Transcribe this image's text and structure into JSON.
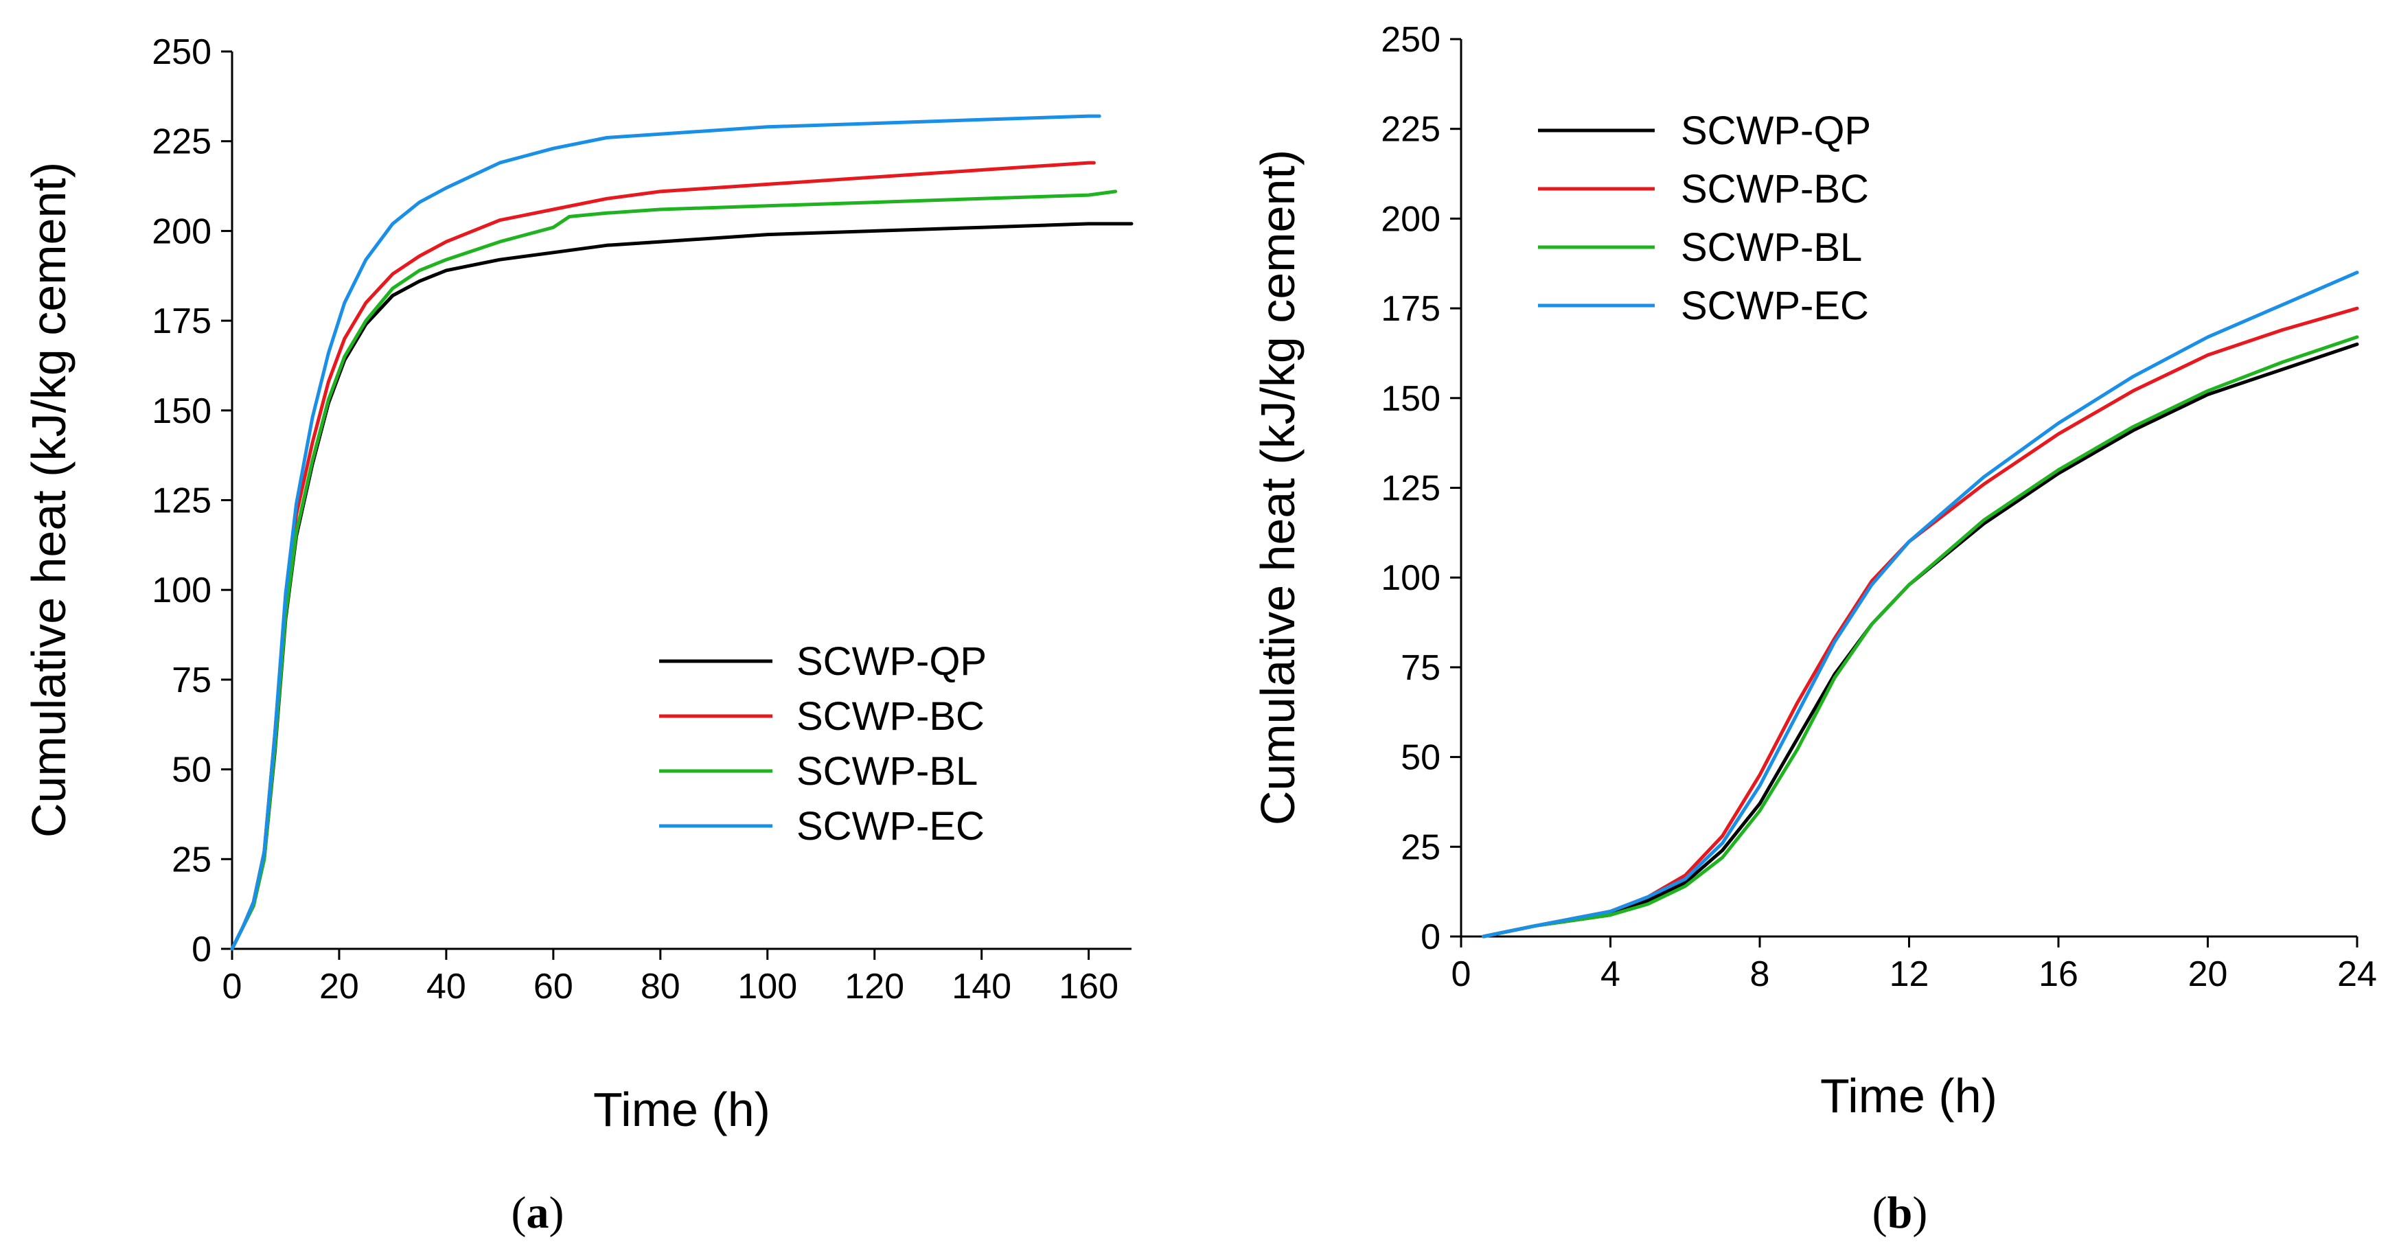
{
  "chart_data": [
    {
      "id": "a",
      "type": "line",
      "caption_letter": "a",
      "title": "",
      "xlabel": "Time (h)",
      "ylabel": "Cumulative heat (kJ/kg cement)",
      "xlim": [
        0,
        168
      ],
      "ylim": [
        0,
        250
      ],
      "xticks": [
        "0",
        "20",
        "40",
        "60",
        "80",
        "100",
        "120",
        "140",
        "160"
      ],
      "yticks": [
        "0",
        "25",
        "50",
        "75",
        "100",
        "125",
        "150",
        "175",
        "200",
        "225",
        "250"
      ],
      "grid": false,
      "legend_position": "bottom-right",
      "series": [
        {
          "name": "SCWP-QP",
          "color": "#000000",
          "x": [
            0,
            2,
            4,
            6,
            8,
            10,
            12,
            15,
            18,
            21,
            25,
            30,
            35,
            40,
            50,
            60,
            70,
            80,
            100,
            120,
            140,
            160,
            168
          ],
          "y": [
            0,
            6,
            12,
            25,
            55,
            92,
            115,
            135,
            152,
            164,
            174,
            182,
            186,
            189,
            192,
            194,
            196,
            197,
            199,
            200,
            201,
            202,
            202
          ]
        },
        {
          "name": "SCWP-BC",
          "color": "#e8191e",
          "x": [
            0,
            2,
            4,
            6,
            8,
            10,
            12,
            15,
            18,
            21,
            25,
            30,
            35,
            40,
            50,
            60,
            70,
            80,
            100,
            120,
            140,
            160,
            161
          ],
          "y": [
            0,
            6,
            13,
            27,
            60,
            97,
            121,
            141,
            158,
            170,
            180,
            188,
            193,
            197,
            203,
            206,
            209,
            211,
            213,
            215,
            217,
            219,
            219
          ]
        },
        {
          "name": "SCWP-BL",
          "color": "#1fb31f",
          "x": [
            0,
            2,
            4,
            6,
            8,
            10,
            12,
            15,
            18,
            21,
            25,
            30,
            35,
            40,
            50,
            60,
            63,
            70,
            80,
            100,
            120,
            140,
            160,
            165
          ],
          "y": [
            0,
            6,
            12,
            25,
            56,
            93,
            116,
            136,
            153,
            165,
            175,
            184,
            189,
            192,
            197,
            201,
            204,
            205,
            206,
            207,
            208,
            209,
            210,
            211
          ]
        },
        {
          "name": "SCWP-EC",
          "color": "#1a8fe8",
          "x": [
            0,
            2,
            4,
            6,
            8,
            10,
            12,
            15,
            18,
            21,
            25,
            30,
            35,
            40,
            50,
            60,
            70,
            80,
            100,
            120,
            140,
            160,
            162
          ],
          "y": [
            0,
            6,
            13,
            27,
            60,
            99,
            124,
            148,
            166,
            180,
            192,
            202,
            208,
            212,
            219,
            223,
            226,
            227,
            229,
            230,
            231,
            232,
            232
          ]
        }
      ]
    },
    {
      "id": "b",
      "type": "line",
      "caption_letter": "b",
      "title": "",
      "xlabel": "Time (h)",
      "ylabel": "Cumulative heat (kJ/kg cement)",
      "xlim": [
        0,
        24
      ],
      "ylim": [
        0,
        250
      ],
      "xticks": [
        "0",
        "4",
        "8",
        "12",
        "16",
        "20",
        "24"
      ],
      "yticks": [
        "0",
        "25",
        "50",
        "75",
        "100",
        "125",
        "150",
        "175",
        "200",
        "225",
        "250"
      ],
      "grid": false,
      "legend_position": "top-left",
      "series": [
        {
          "name": "SCWP-QP",
          "color": "#000000",
          "x": [
            0.6,
            2,
            4,
            5,
            6,
            7,
            8,
            9,
            10,
            11,
            12,
            14,
            16,
            18,
            20,
            22,
            24
          ],
          "y": [
            0,
            3,
            6,
            10,
            15,
            24,
            37,
            55,
            73,
            87,
            98,
            115,
            129,
            141,
            151,
            158,
            165
          ]
        },
        {
          "name": "SCWP-BC",
          "color": "#e8191e",
          "x": [
            0.6,
            2,
            4,
            5,
            6,
            7,
            8,
            9,
            10,
            11,
            12,
            14,
            16,
            18,
            20,
            22,
            24
          ],
          "y": [
            0,
            3,
            7,
            11,
            17,
            28,
            45,
            65,
            83,
            99,
            110,
            126,
            140,
            152,
            162,
            169,
            175
          ]
        },
        {
          "name": "SCWP-BL",
          "color": "#1fb31f",
          "x": [
            0.6,
            2,
            4,
            5,
            6,
            7,
            8,
            9,
            10,
            11,
            12,
            14,
            16,
            18,
            20,
            22,
            24
          ],
          "y": [
            0,
            3,
            6,
            9,
            14,
            22,
            35,
            52,
            72,
            87,
            98,
            116,
            130,
            142,
            152,
            160,
            167
          ]
        },
        {
          "name": "SCWP-EC",
          "color": "#1a8fe8",
          "x": [
            0.6,
            2,
            4,
            5,
            6,
            7,
            8,
            9,
            10,
            11,
            12,
            14,
            16,
            18,
            20,
            22,
            24
          ],
          "y": [
            0,
            3,
            7,
            11,
            16,
            26,
            42,
            62,
            82,
            98,
            110,
            128,
            143,
            156,
            167,
            176,
            185
          ]
        }
      ]
    }
  ]
}
